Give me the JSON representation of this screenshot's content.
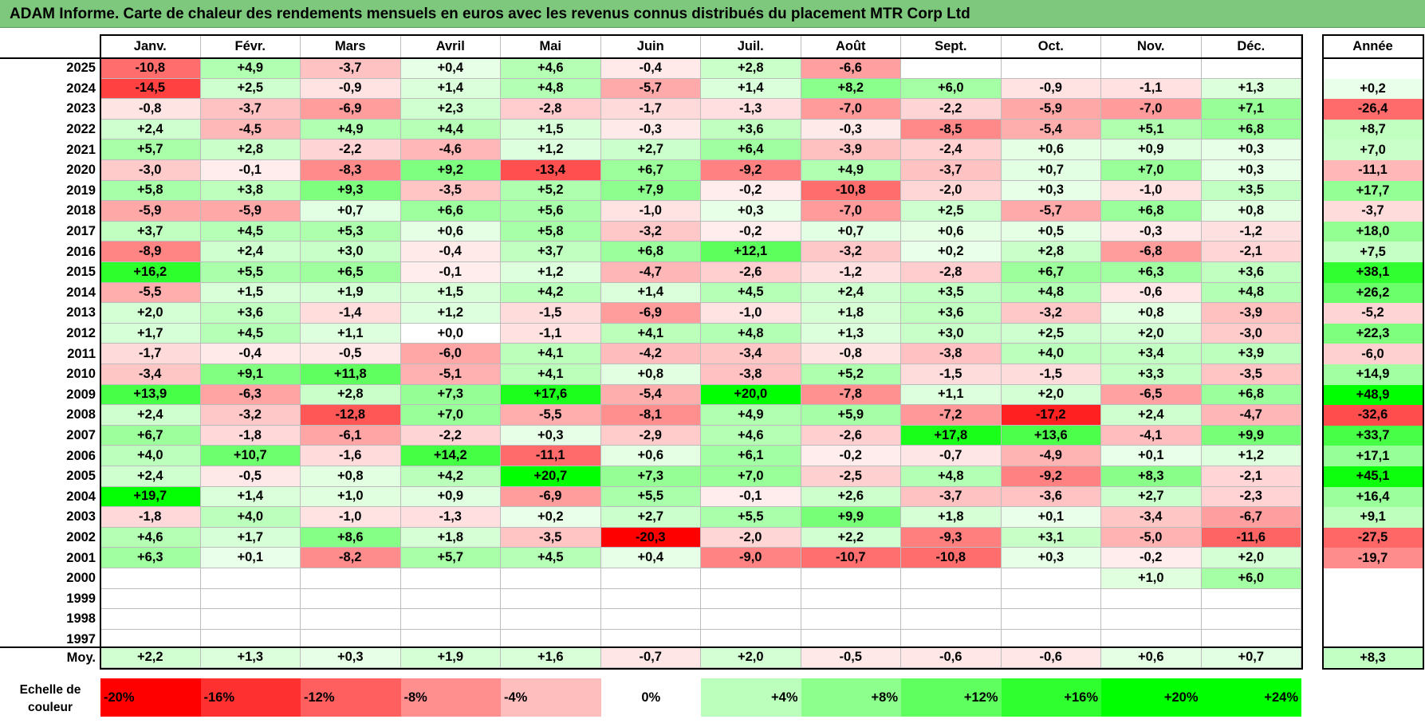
{
  "title": "ADAM Informe. Carte de chaleur des rendements mensuels en euros avec les revenus connus distribués du placement MTR Corp Ltd",
  "colors": {
    "title_bg": "#7dc87d",
    "negative_max": "#ff0000",
    "positive_max": "#00ff00",
    "neutral": "#ffffff"
  },
  "chart_data": {
    "type": "heatmap",
    "months": [
      "Janv.",
      "Févr.",
      "Mars",
      "Avril",
      "Mai",
      "Juin",
      "Juil.",
      "Août",
      "Sept.",
      "Oct.",
      "Nov.",
      "Déc."
    ],
    "year_header": "Année",
    "rows": [
      {
        "year": "2025",
        "values": [
          "-10,8",
          "+4,9",
          "-3,7",
          "+0,4",
          "+4,6",
          "-0,4",
          "+2,8",
          "-6,6",
          "",
          "",
          "",
          ""
        ],
        "annual": ""
      },
      {
        "year": "2024",
        "values": [
          "-14,5",
          "+2,5",
          "-0,9",
          "+1,4",
          "+4,8",
          "-5,7",
          "+1,4",
          "+8,2",
          "+6,0",
          "-0,9",
          "-1,1",
          "+1,3"
        ],
        "annual": "+0,2"
      },
      {
        "year": "2023",
        "values": [
          "-0,8",
          "-3,7",
          "-6,9",
          "+2,3",
          "-2,8",
          "-1,7",
          "-1,3",
          "-7,0",
          "-2,2",
          "-5,9",
          "-7,0",
          "+7,1"
        ],
        "annual": "-26,4"
      },
      {
        "year": "2022",
        "values": [
          "+2,4",
          "-4,5",
          "+4,9",
          "+4,4",
          "+1,5",
          "-0,3",
          "+3,6",
          "-0,3",
          "-8,5",
          "-5,4",
          "+5,1",
          "+6,8"
        ],
        "annual": "+8,7"
      },
      {
        "year": "2021",
        "values": [
          "+5,7",
          "+2,8",
          "-2,2",
          "-4,6",
          "+1,2",
          "+2,7",
          "+6,4",
          "-3,9",
          "-2,4",
          "+0,6",
          "+0,9",
          "+0,3"
        ],
        "annual": "+7,0"
      },
      {
        "year": "2020",
        "values": [
          "-3,0",
          "-0,1",
          "-8,3",
          "+9,2",
          "-13,4",
          "+6,7",
          "-9,2",
          "+4,9",
          "-3,7",
          "+0,7",
          "+7,0",
          "+0,3"
        ],
        "annual": "-11,1"
      },
      {
        "year": "2019",
        "values": [
          "+5,8",
          "+3,8",
          "+9,3",
          "-3,5",
          "+5,2",
          "+7,9",
          "-0,2",
          "-10,8",
          "-2,0",
          "+0,3",
          "-1,0",
          "+3,5"
        ],
        "annual": "+17,7"
      },
      {
        "year": "2018",
        "values": [
          "-5,9",
          "-5,9",
          "+0,7",
          "+6,6",
          "+5,6",
          "-1,0",
          "+0,3",
          "-7,0",
          "+2,5",
          "-5,7",
          "+6,8",
          "+0,8"
        ],
        "annual": "-3,7"
      },
      {
        "year": "2017",
        "values": [
          "+3,7",
          "+4,5",
          "+5,3",
          "+0,6",
          "+5,8",
          "-3,2",
          "-0,2",
          "+0,7",
          "+0,6",
          "+0,5",
          "-0,3",
          "-1,2"
        ],
        "annual": "+18,0"
      },
      {
        "year": "2016",
        "values": [
          "-8,9",
          "+2,4",
          "+3,0",
          "-0,4",
          "+3,7",
          "+6,8",
          "+12,1",
          "-3,2",
          "+0,2",
          "+2,8",
          "-6,8",
          "-2,1"
        ],
        "annual": "+7,5"
      },
      {
        "year": "2015",
        "values": [
          "+16,2",
          "+5,5",
          "+6,5",
          "-0,1",
          "+1,2",
          "-4,7",
          "-2,6",
          "-1,2",
          "-2,8",
          "+6,7",
          "+6,3",
          "+3,6"
        ],
        "annual": "+38,1"
      },
      {
        "year": "2014",
        "values": [
          "-5,5",
          "+1,5",
          "+1,9",
          "+1,5",
          "+4,2",
          "+1,4",
          "+4,5",
          "+2,4",
          "+3,5",
          "+4,8",
          "-0,6",
          "+4,8"
        ],
        "annual": "+26,2"
      },
      {
        "year": "2013",
        "values": [
          "+2,0",
          "+3,6",
          "-1,4",
          "+1,2",
          "-1,5",
          "-6,9",
          "-1,0",
          "+1,8",
          "+3,6",
          "-3,2",
          "+0,8",
          "-3,9"
        ],
        "annual": "-5,2"
      },
      {
        "year": "2012",
        "values": [
          "+1,7",
          "+4,5",
          "+1,1",
          "+0,0",
          "-1,1",
          "+4,1",
          "+4,8",
          "+1,3",
          "+3,0",
          "+2,5",
          "+2,0",
          "-3,0"
        ],
        "annual": "+22,3"
      },
      {
        "year": "2011",
        "values": [
          "-1,7",
          "-0,4",
          "-0,5",
          "-6,0",
          "+4,1",
          "-4,2",
          "-3,4",
          "-0,8",
          "-3,8",
          "+4,0",
          "+3,4",
          "+3,9"
        ],
        "annual": "-6,0"
      },
      {
        "year": "2010",
        "values": [
          "-3,4",
          "+9,1",
          "+11,8",
          "-5,1",
          "+4,1",
          "+0,8",
          "-3,8",
          "+5,2",
          "-1,5",
          "-1,5",
          "+3,3",
          "-3,5"
        ],
        "annual": "+14,9"
      },
      {
        "year": "2009",
        "values": [
          "+13,9",
          "-6,3",
          "+2,8",
          "+7,3",
          "+17,6",
          "-5,4",
          "+20,0",
          "-7,8",
          "+1,1",
          "+2,0",
          "-6,5",
          "+6,8"
        ],
        "annual": "+48,9"
      },
      {
        "year": "2008",
        "values": [
          "+2,4",
          "-3,2",
          "-12,8",
          "+7,0",
          "-5,5",
          "-8,1",
          "+4,9",
          "+5,9",
          "-7,2",
          "-17,2",
          "+2,4",
          "-4,7"
        ],
        "annual": "-32,6"
      },
      {
        "year": "2007",
        "values": [
          "+6,7",
          "-1,8",
          "-6,1",
          "-2,2",
          "+0,3",
          "-2,9",
          "+4,6",
          "-2,6",
          "+17,8",
          "+13,6",
          "-4,1",
          "+9,9"
        ],
        "annual": "+33,7"
      },
      {
        "year": "2006",
        "values": [
          "+4,0",
          "+10,7",
          "-1,6",
          "+14,2",
          "-11,1",
          "+0,6",
          "+6,1",
          "-0,2",
          "-0,7",
          "-4,9",
          "+0,1",
          "+1,2"
        ],
        "annual": "+17,1"
      },
      {
        "year": "2005",
        "values": [
          "+2,4",
          "-0,5",
          "+0,8",
          "+4,2",
          "+20,7",
          "+7,3",
          "+7,0",
          "-2,5",
          "+4,8",
          "-9,2",
          "+8,3",
          "-2,1"
        ],
        "annual": "+45,1"
      },
      {
        "year": "2004",
        "values": [
          "+19,7",
          "+1,4",
          "+1,0",
          "+0,9",
          "-6,9",
          "+5,5",
          "-0,1",
          "+2,6",
          "-3,7",
          "-3,6",
          "+2,7",
          "-2,3"
        ],
        "annual": "+16,4"
      },
      {
        "year": "2003",
        "values": [
          "-1,8",
          "+4,0",
          "-1,0",
          "-1,3",
          "+0,2",
          "+2,7",
          "+5,5",
          "+9,9",
          "+1,8",
          "+0,1",
          "-3,4",
          "-6,7"
        ],
        "annual": "+9,1"
      },
      {
        "year": "2002",
        "values": [
          "+4,6",
          "+1,7",
          "+8,6",
          "+1,8",
          "-3,5",
          "-20,3",
          "-2,0",
          "+2,2",
          "-9,3",
          "+3,1",
          "-5,0",
          "-11,6"
        ],
        "annual": "-27,5"
      },
      {
        "year": "2001",
        "values": [
          "+6,3",
          "+0,1",
          "-8,2",
          "+5,7",
          "+4,5",
          "+0,4",
          "-9,0",
          "-10,7",
          "-10,8",
          "+0,3",
          "-0,2",
          "+2,0"
        ],
        "annual": "-19,7"
      },
      {
        "year": "2000",
        "values": [
          "",
          "",
          "",
          "",
          "",
          "",
          "",
          "",
          "",
          "",
          "+1,0",
          "+6,0"
        ],
        "annual": ""
      },
      {
        "year": "1999",
        "values": [
          "",
          "",
          "",
          "",
          "",
          "",
          "",
          "",
          "",
          "",
          "",
          ""
        ],
        "annual": ""
      },
      {
        "year": "1998",
        "values": [
          "",
          "",
          "",
          "",
          "",
          "",
          "",
          "",
          "",
          "",
          "",
          ""
        ],
        "annual": ""
      },
      {
        "year": "1997",
        "values": [
          "",
          "",
          "",
          "",
          "",
          "",
          "",
          "",
          "",
          "",
          "",
          ""
        ],
        "annual": ""
      }
    ],
    "average": {
      "label": "Moy.",
      "values": [
        "+2,2",
        "+1,3",
        "+0,3",
        "+1,9",
        "+1,6",
        "-0,7",
        "+2,0",
        "-0,5",
        "-0,6",
        "-0,6",
        "+0,6",
        "+0,7"
      ],
      "annual": "+8,3"
    },
    "color_scale": {
      "label": "Echelle de couleur",
      "stops": [
        "-20%",
        "-16%",
        "-12%",
        "-8%",
        "-4%",
        "0%",
        "+4%",
        "+8%",
        "+12%",
        "+16%",
        "+20%",
        "+24%"
      ],
      "values": [
        -20,
        -16,
        -12,
        -8,
        -4,
        0,
        4,
        8,
        12,
        16,
        20,
        24
      ]
    }
  }
}
